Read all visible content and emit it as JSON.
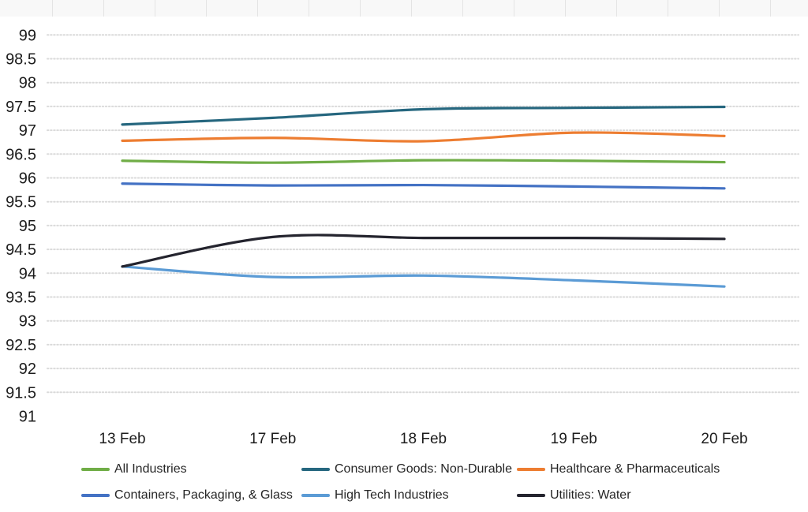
{
  "chart_data": {
    "type": "line",
    "title": "",
    "line_style": "smooth",
    "grid": "horizontal-dotted",
    "legend_position": "bottom",
    "x_categories": [
      "13 Feb",
      "17 Feb",
      "18 Feb",
      "19 Feb",
      "20 Feb"
    ],
    "y_axis": {
      "min": 91,
      "max": 99,
      "step": 0.5,
      "tick_labels": [
        "99",
        "98.5",
        "98",
        "97.5",
        "97",
        "96.5",
        "96",
        "95.5",
        "95",
        "94.5",
        "94",
        "93.5",
        "93",
        "92.5",
        "92",
        "91.5",
        "91"
      ]
    },
    "series": [
      {
        "name": "All Industries",
        "color": "#70AD47",
        "values": [
          96.36,
          96.32,
          96.37,
          96.36,
          96.33
        ]
      },
      {
        "name": "Consumer Goods: Non-Durable",
        "color": "#26677F",
        "values": [
          97.12,
          97.26,
          97.44,
          97.47,
          97.49
        ]
      },
      {
        "name": "Healthcare & Pharmaceuticals",
        "color": "#ED7D31",
        "values": [
          96.78,
          96.84,
          96.77,
          96.95,
          96.88
        ]
      },
      {
        "name": "Containers, Packaging, & Glass",
        "color": "#4472C4",
        "values": [
          95.88,
          95.84,
          95.85,
          95.82,
          95.78
        ]
      },
      {
        "name": "High Tech Industries",
        "color": "#5B9BD5",
        "values": [
          94.14,
          93.92,
          93.95,
          93.85,
          93.72
        ]
      },
      {
        "name": "Utilities: Water",
        "color": "#24242E",
        "values": [
          94.14,
          94.76,
          94.74,
          94.74,
          94.72
        ]
      }
    ]
  }
}
